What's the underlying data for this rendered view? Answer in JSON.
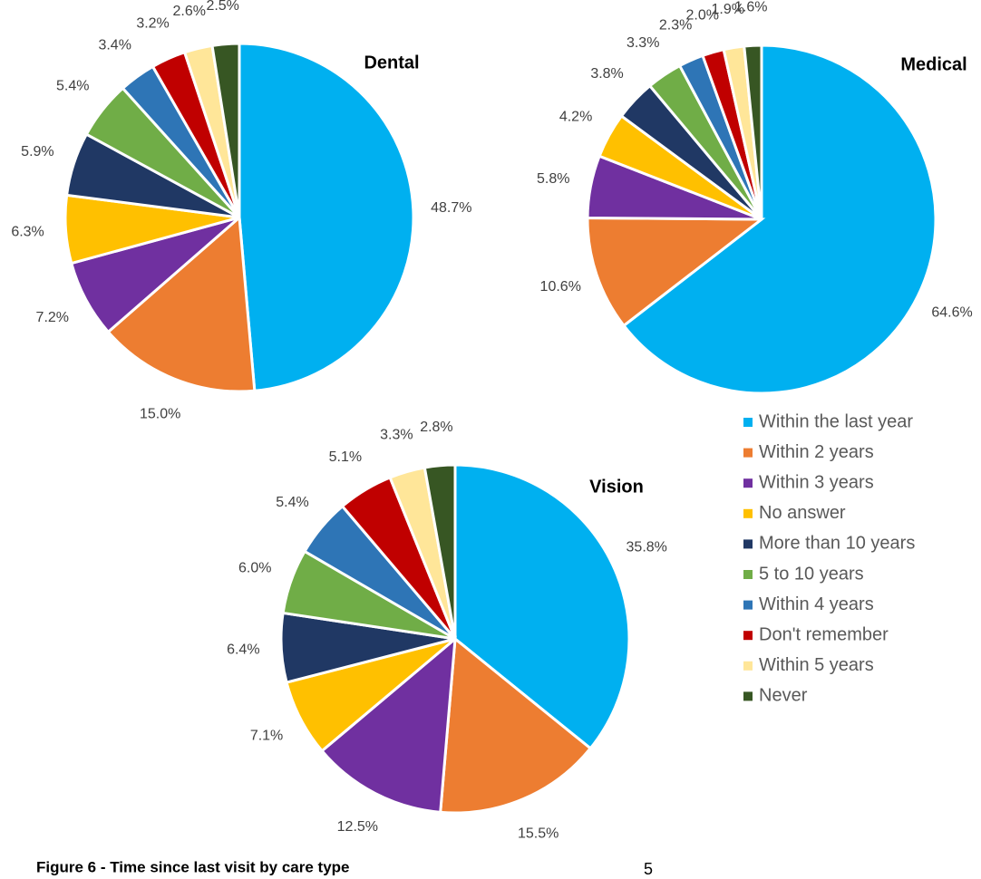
{
  "chart_data": [
    {
      "type": "pie",
      "title": "Dental",
      "categories": [
        "Within the last year",
        "Within 2 years",
        "Within 3 years",
        "No answer",
        "More than 10 years",
        "5 to 10 years",
        "Within 4 years",
        "Don't remember",
        "Within 5 years",
        "Never"
      ],
      "values": [
        48.7,
        15.0,
        7.2,
        6.3,
        5.9,
        5.4,
        3.4,
        3.2,
        2.6,
        2.5
      ],
      "value_labels": [
        "48.7%",
        "15.0%",
        "7.2%",
        "6.3%",
        "5.9%",
        "5.4%",
        "3.4%",
        "3.2%",
        "2.6%",
        "2.5%"
      ],
      "colors": [
        "#00b0f0",
        "#ed7d31",
        "#7030a0",
        "#ffc000",
        "#203864",
        "#70ad47",
        "#2e75b6",
        "#c00000",
        "#ffe699",
        "#375623"
      ]
    },
    {
      "type": "pie",
      "title": "Medical",
      "categories": [
        "Within the last year",
        "Within 2 years",
        "Within 3 years",
        "No answer",
        "More than 10 years",
        "5 to 10 years",
        "Within 4 years",
        "Don't remember",
        "Within 5 years",
        "Never"
      ],
      "values": [
        64.6,
        10.6,
        5.8,
        4.2,
        3.8,
        3.3,
        2.3,
        2.0,
        1.9,
        1.6
      ],
      "value_labels": [
        "64.6%",
        "10.6%",
        "5.8%",
        "4.2%",
        "3.8%",
        "3.3%",
        "2.3%",
        "2.0%",
        "1.9%",
        "1.6%"
      ],
      "colors": [
        "#00b0f0",
        "#ed7d31",
        "#7030a0",
        "#ffc000",
        "#203864",
        "#70ad47",
        "#2e75b6",
        "#c00000",
        "#ffe699",
        "#375623"
      ]
    },
    {
      "type": "pie",
      "title": "Vision",
      "categories": [
        "Within the last year",
        "Within 2 years",
        "Within 3 years",
        "No answer",
        "More than 10 years",
        "5 to 10 years",
        "Within 4 years",
        "Don't remember",
        "Within 5 years",
        "Never"
      ],
      "values": [
        35.8,
        15.5,
        12.5,
        7.1,
        6.4,
        6.0,
        5.4,
        5.1,
        3.3,
        2.8
      ],
      "value_labels": [
        "35.8%",
        "15.5%",
        "12.5%",
        "7.1%",
        "6.4%",
        "6.0%",
        "5.4%",
        "5.1%",
        "3.3%",
        "2.8%"
      ],
      "colors": [
        "#00b0f0",
        "#ed7d31",
        "#7030a0",
        "#ffc000",
        "#203864",
        "#70ad47",
        "#2e75b6",
        "#c00000",
        "#ffe699",
        "#375623"
      ]
    }
  ],
  "caption": "Figure 6 - Time since last visit by care type",
  "page_number": "5"
}
